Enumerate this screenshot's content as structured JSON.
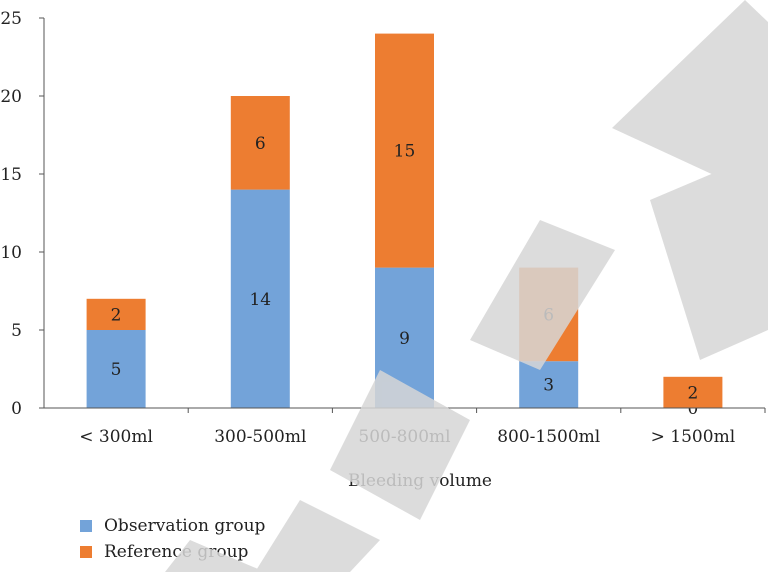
{
  "chart_data": {
    "type": "bar",
    "stacked": true,
    "categories": [
      "< 300ml",
      "300-500ml",
      "500-800ml",
      "800-1500ml",
      "> 1500ml"
    ],
    "series": [
      {
        "name": "Observation group",
        "values": [
          5,
          14,
          9,
          3,
          0
        ],
        "color": "#73a3d9"
      },
      {
        "name": "Reference group",
        "values": [
          2,
          6,
          15,
          6,
          2
        ],
        "color": "#ed7d31"
      }
    ],
    "xlabel": "Bleeding volume",
    "ylabel": "",
    "ylim": [
      0,
      25
    ],
    "yticks": [
      0,
      5,
      10,
      15,
      20,
      25
    ],
    "grid": false,
    "legend": "bottom-left"
  }
}
